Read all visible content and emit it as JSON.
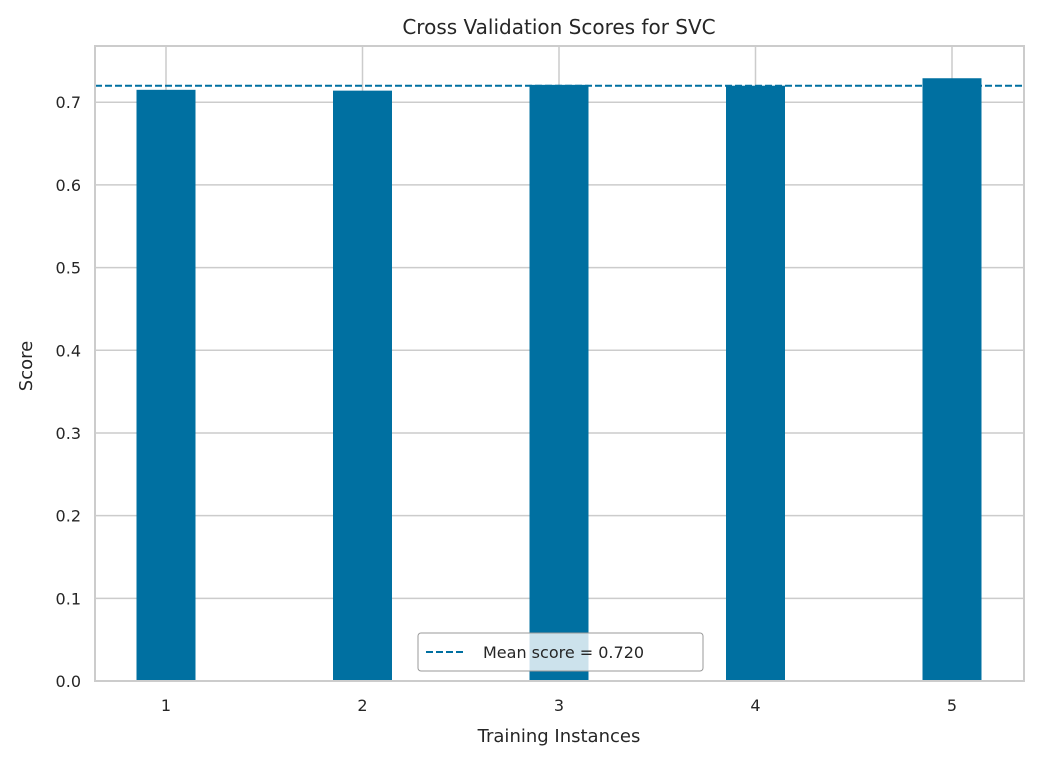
{
  "chart_data": {
    "type": "bar",
    "title": "Cross Validation Scores for SVC",
    "xlabel": "Training Instances",
    "ylabel": "Score",
    "categories": [
      "1",
      "2",
      "3",
      "4",
      "5"
    ],
    "values": [
      0.715,
      0.714,
      0.721,
      0.72,
      0.729
    ],
    "ylim": [
      0.0,
      0.768
    ],
    "yticks": [
      "0.0",
      "0.1",
      "0.2",
      "0.3",
      "0.4",
      "0.5",
      "0.6",
      "0.7"
    ],
    "mean_line": {
      "value": 0.72,
      "label": "Mean score = 0.720"
    },
    "grid": true,
    "legend_position": "bottom-center",
    "colors": {
      "bar": "#0070a1",
      "mean_line": "#0070a1",
      "grid": "#cccccc",
      "text": "#262626"
    }
  }
}
